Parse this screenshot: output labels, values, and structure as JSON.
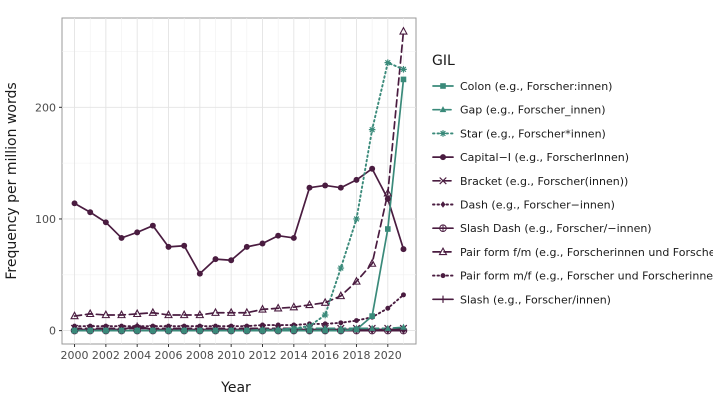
{
  "chart_data": {
    "type": "line",
    "xlabel": "Year",
    "ylabel": "Frequency per million words",
    "xlim": [
      1999.2,
      2021.8
    ],
    "ylim": [
      -12,
      280
    ],
    "x_ticks": [
      2000,
      2002,
      2004,
      2006,
      2008,
      2010,
      2012,
      2014,
      2016,
      2018,
      2020
    ],
    "y_ticks": [
      0,
      100,
      200
    ],
    "grid": true,
    "legend": {
      "title": "GIL",
      "position": "right"
    },
    "colors": {
      "purple": "#4a1c40",
      "teal": "#3a8a7a"
    },
    "x": [
      2000,
      2001,
      2002,
      2003,
      2004,
      2005,
      2006,
      2007,
      2008,
      2009,
      2010,
      2011,
      2012,
      2013,
      2014,
      2015,
      2016,
      2017,
      2018,
      2019,
      2020,
      2021
    ],
    "series": [
      {
        "name": "Colon (e.g., Forscher:innen)",
        "color": "#3a8a7a",
        "line": "solid",
        "marker": "square",
        "values": [
          0,
          0,
          0,
          0,
          0,
          0,
          0,
          0,
          0,
          0,
          0,
          0,
          0,
          0,
          0,
          0,
          0,
          0,
          1,
          13,
          91,
          225
        ]
      },
      {
        "name": "Gap (e.g., Forscher_innen)",
        "color": "#3a8a7a",
        "line": "longdash",
        "marker": "triangle-filled",
        "values": [
          0,
          0,
          0,
          0,
          0,
          0,
          0,
          0,
          0,
          0,
          0,
          0,
          1,
          1,
          2,
          2,
          2,
          2,
          2,
          2,
          2,
          3
        ]
      },
      {
        "name": "Star (e.g., Forscher*innen)",
        "color": "#3a8a7a",
        "line": "dotted",
        "marker": "asterisk",
        "values": [
          0,
          0,
          0,
          0,
          0,
          0,
          0,
          0,
          0,
          0,
          0,
          0,
          0,
          0,
          2,
          4,
          14,
          56,
          100,
          180,
          240,
          234
        ]
      },
      {
        "name": "Capital−I (e.g., ForscherInnen)",
        "color": "#4a1c40",
        "line": "solid",
        "marker": "circle",
        "values": [
          114,
          106,
          97,
          83,
          88,
          94,
          75,
          76,
          51,
          64,
          63,
          75,
          78,
          85,
          83,
          128,
          130,
          128,
          135,
          145,
          118,
          73
        ]
      },
      {
        "name": "Bracket (e.g., Forscher(innen))",
        "color": "#4a1c40",
        "line": "longdash",
        "marker": "x",
        "values": [
          2,
          2,
          2,
          2,
          2,
          2,
          2,
          2,
          2,
          2,
          2,
          2,
          2,
          2,
          2,
          2,
          2,
          2,
          2,
          2,
          2,
          2
        ]
      },
      {
        "name": "Dash (e.g., Forscher−innen)",
        "color": "#4a1c40",
        "line": "dotted",
        "marker": "diamond",
        "values": [
          0,
          0,
          0,
          0,
          0,
          0,
          0,
          0,
          0,
          0,
          0,
          0,
          0,
          0,
          0,
          0,
          0,
          0,
          0,
          0,
          0,
          0
        ]
      },
      {
        "name": "Slash Dash (e.g., Forscher/−innen)",
        "color": "#4a1c40",
        "line": "solid",
        "marker": "circle-plus",
        "values": [
          0,
          0,
          0,
          0,
          0,
          0,
          0,
          0,
          0,
          0,
          0,
          0,
          0,
          0,
          0,
          0,
          0,
          0,
          0,
          0,
          0,
          0
        ]
      },
      {
        "name": "Pair form f/m (e.g., Forscherinnen und Forscher)",
        "color": "#4a1c40",
        "line": "longdash",
        "marker": "triangle-open",
        "values": [
          13,
          15,
          14,
          14,
          15,
          16,
          14,
          14,
          14,
          16,
          16,
          16,
          19,
          20,
          21,
          23,
          25,
          31,
          44,
          60,
          123,
          268
        ]
      },
      {
        "name": "Pair form m/f (e.g., Forscher und Forscherinnen)",
        "color": "#4a1c40",
        "line": "dotted",
        "marker": "dot",
        "values": [
          4,
          4,
          4,
          4,
          4,
          4,
          4,
          4,
          4,
          4,
          4,
          4,
          5,
          5,
          5,
          6,
          6,
          7,
          9,
          12,
          20,
          32
        ]
      },
      {
        "name": "Slash (e.g., Forscher/innen)",
        "color": "#4a1c40",
        "line": "solid",
        "marker": "plus",
        "values": [
          1,
          1,
          1,
          1,
          4,
          1,
          1,
          1,
          1,
          1,
          1,
          1,
          1,
          1,
          1,
          1,
          1,
          1,
          1,
          1,
          1,
          1
        ]
      }
    ]
  }
}
